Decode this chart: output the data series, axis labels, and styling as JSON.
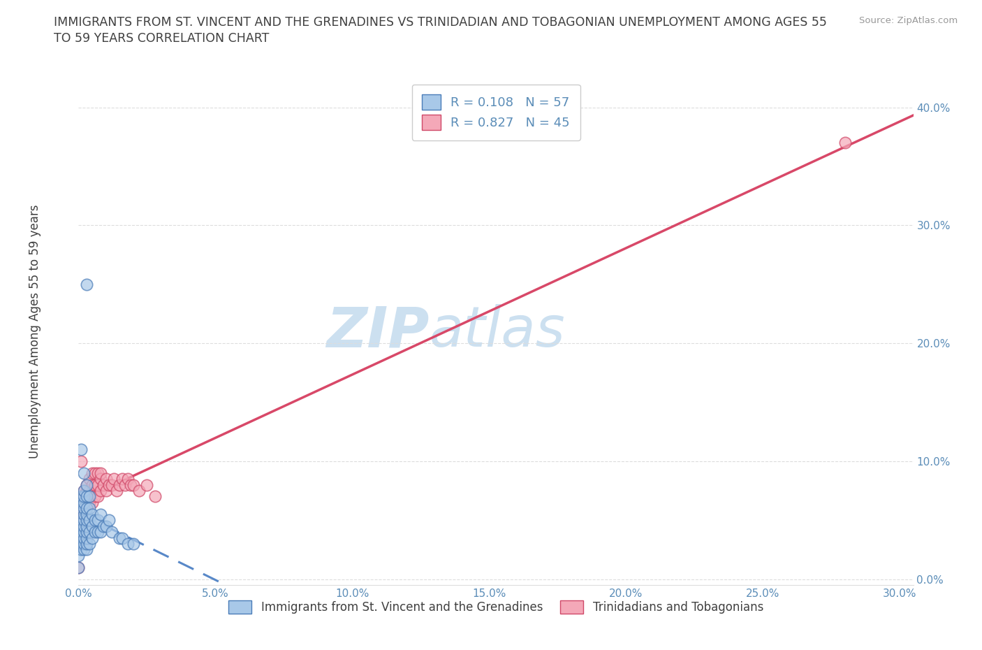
{
  "title_line1": "IMMIGRANTS FROM ST. VINCENT AND THE GRENADINES VS TRINIDADIAN AND TOBAGONIAN UNEMPLOYMENT AMONG AGES 55",
  "title_line2": "TO 59 YEARS CORRELATION CHART",
  "source_text": "Source: ZipAtlas.com",
  "ylabel": "Unemployment Among Ages 55 to 59 years",
  "xlim": [
    0.0,
    0.305
  ],
  "ylim": [
    -0.005,
    0.425
  ],
  "xticks": [
    0.0,
    0.05,
    0.1,
    0.15,
    0.2,
    0.25,
    0.3
  ],
  "yticks": [
    0.0,
    0.1,
    0.2,
    0.3,
    0.4
  ],
  "ytick_labels": [
    "0.0%",
    "10.0%",
    "20.0%",
    "30.0%",
    "40.0%"
  ],
  "xtick_labels": [
    "0.0%",
    "5.0%",
    "10.0%",
    "15.0%",
    "20.0%",
    "25.0%",
    "30.0%"
  ],
  "blue_R": 0.108,
  "blue_N": 57,
  "pink_R": 0.827,
  "pink_N": 45,
  "blue_color": "#a8c8e8",
  "pink_color": "#f4a8b8",
  "blue_edge_color": "#4a7cb8",
  "pink_edge_color": "#d04868",
  "blue_line_color": "#5888c8",
  "pink_line_color": "#d84868",
  "axis_color": "#5B8DB8",
  "title_color": "#404040",
  "grid_color": "#dddddd",
  "watermark_color": "#cce0f0",
  "legend_label_blue": "Immigrants from St. Vincent and the Grenadines",
  "legend_label_pink": "Trinidadians and Tobagonians",
  "blue_scatter_x": [
    0.0,
    0.0,
    0.001,
    0.001,
    0.001,
    0.001,
    0.001,
    0.001,
    0.001,
    0.001,
    0.001,
    0.002,
    0.002,
    0.002,
    0.002,
    0.002,
    0.002,
    0.002,
    0.002,
    0.002,
    0.002,
    0.002,
    0.003,
    0.003,
    0.003,
    0.003,
    0.003,
    0.003,
    0.003,
    0.003,
    0.003,
    0.004,
    0.004,
    0.004,
    0.004,
    0.004,
    0.005,
    0.005,
    0.005,
    0.006,
    0.006,
    0.007,
    0.007,
    0.008,
    0.008,
    0.009,
    0.01,
    0.011,
    0.012,
    0.015,
    0.016,
    0.018,
    0.02,
    0.001,
    0.002,
    0.003,
    0.003
  ],
  "blue_scatter_y": [
    0.01,
    0.02,
    0.025,
    0.03,
    0.035,
    0.04,
    0.045,
    0.05,
    0.06,
    0.065,
    0.07,
    0.025,
    0.03,
    0.035,
    0.04,
    0.045,
    0.05,
    0.055,
    0.06,
    0.065,
    0.07,
    0.075,
    0.025,
    0.03,
    0.035,
    0.04,
    0.045,
    0.05,
    0.055,
    0.06,
    0.07,
    0.03,
    0.04,
    0.05,
    0.06,
    0.07,
    0.035,
    0.045,
    0.055,
    0.04,
    0.05,
    0.04,
    0.05,
    0.04,
    0.055,
    0.045,
    0.045,
    0.05,
    0.04,
    0.035,
    0.035,
    0.03,
    0.03,
    0.11,
    0.09,
    0.25,
    0.08
  ],
  "pink_scatter_x": [
    0.0,
    0.001,
    0.001,
    0.001,
    0.002,
    0.002,
    0.002,
    0.003,
    0.003,
    0.003,
    0.003,
    0.004,
    0.004,
    0.004,
    0.005,
    0.005,
    0.005,
    0.005,
    0.006,
    0.006,
    0.006,
    0.007,
    0.007,
    0.007,
    0.008,
    0.008,
    0.008,
    0.009,
    0.01,
    0.01,
    0.011,
    0.012,
    0.013,
    0.014,
    0.015,
    0.016,
    0.017,
    0.018,
    0.019,
    0.02,
    0.022,
    0.025,
    0.028,
    0.001,
    0.28
  ],
  "pink_scatter_y": [
    0.01,
    0.05,
    0.06,
    0.07,
    0.055,
    0.065,
    0.075,
    0.06,
    0.07,
    0.075,
    0.08,
    0.065,
    0.075,
    0.085,
    0.065,
    0.075,
    0.08,
    0.09,
    0.07,
    0.08,
    0.09,
    0.07,
    0.08,
    0.09,
    0.075,
    0.085,
    0.09,
    0.08,
    0.075,
    0.085,
    0.08,
    0.08,
    0.085,
    0.075,
    0.08,
    0.085,
    0.08,
    0.085,
    0.08,
    0.08,
    0.075,
    0.08,
    0.07,
    0.1,
    0.37
  ]
}
